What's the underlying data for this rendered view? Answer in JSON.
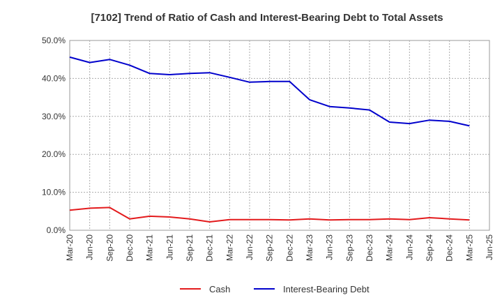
{
  "chart_data": {
    "type": "line",
    "title": "[7102]  Trend of Ratio of Cash and Interest-Bearing Debt to Total Assets",
    "xlabel": "",
    "ylabel": "",
    "categories": [
      "Mar-20",
      "Jun-20",
      "Sep-20",
      "Dec-20",
      "Mar-21",
      "Jun-21",
      "Sep-21",
      "Dec-21",
      "Mar-22",
      "Jun-22",
      "Sep-22",
      "Dec-22",
      "Mar-23",
      "Jun-23",
      "Sep-23",
      "Dec-23",
      "Mar-24",
      "Jun-24",
      "Sep-24",
      "Dec-24",
      "Mar-25",
      "Jun-25"
    ],
    "ylim": [
      0,
      50
    ],
    "yticks": [
      0,
      10,
      20,
      30,
      40,
      50
    ],
    "ytick_labels": [
      "0.0%",
      "10.0%",
      "20.0%",
      "30.0%",
      "40.0%",
      "50.0%"
    ],
    "grid": "dotted vertical and horizontal",
    "legend_position": "bottom-center",
    "series": [
      {
        "name": "Cash",
        "color": "#e31a1c",
        "values": [
          5.3,
          5.8,
          6.0,
          3.0,
          3.7,
          3.5,
          3.0,
          2.2,
          2.8,
          2.8,
          2.8,
          2.7,
          3.0,
          2.7,
          2.8,
          2.8,
          3.0,
          2.8,
          3.3,
          3.0,
          2.7,
          null
        ]
      },
      {
        "name": "Interest-Bearing Debt",
        "color": "#0000cc",
        "values": [
          45.6,
          44.2,
          45.0,
          43.5,
          41.3,
          41.0,
          41.3,
          41.5,
          40.3,
          39.0,
          39.2,
          39.2,
          34.4,
          32.6,
          32.2,
          31.7,
          28.5,
          28.1,
          29.0,
          28.7,
          27.5,
          null
        ]
      }
    ]
  }
}
